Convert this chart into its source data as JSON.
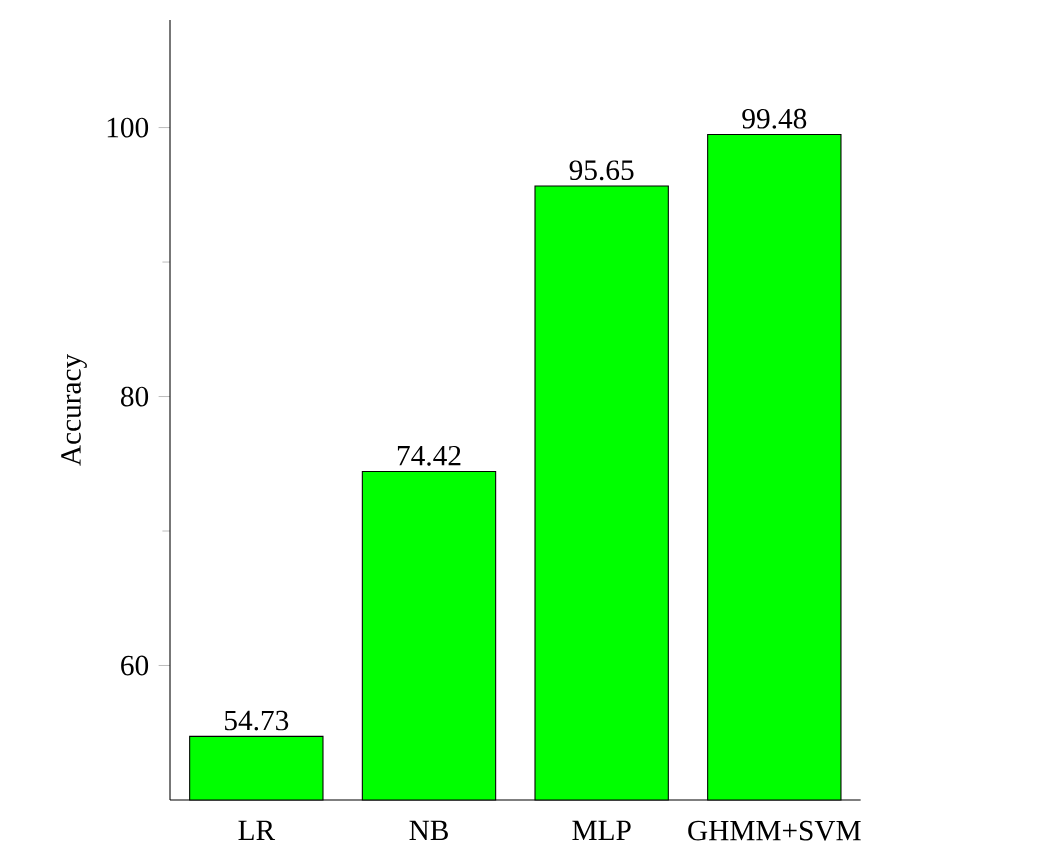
{
  "chart_data": {
    "type": "bar",
    "ylabel": "Accuracy",
    "categories": [
      "LR",
      "NB",
      "MLP",
      "GHMM+SVM"
    ],
    "values": [
      54.73,
      74.42,
      95.65,
      99.48
    ],
    "color": "#00ff00",
    "ylim": [
      50,
      108
    ],
    "yticks": [
      60,
      80,
      100
    ],
    "data_labels": true
  }
}
